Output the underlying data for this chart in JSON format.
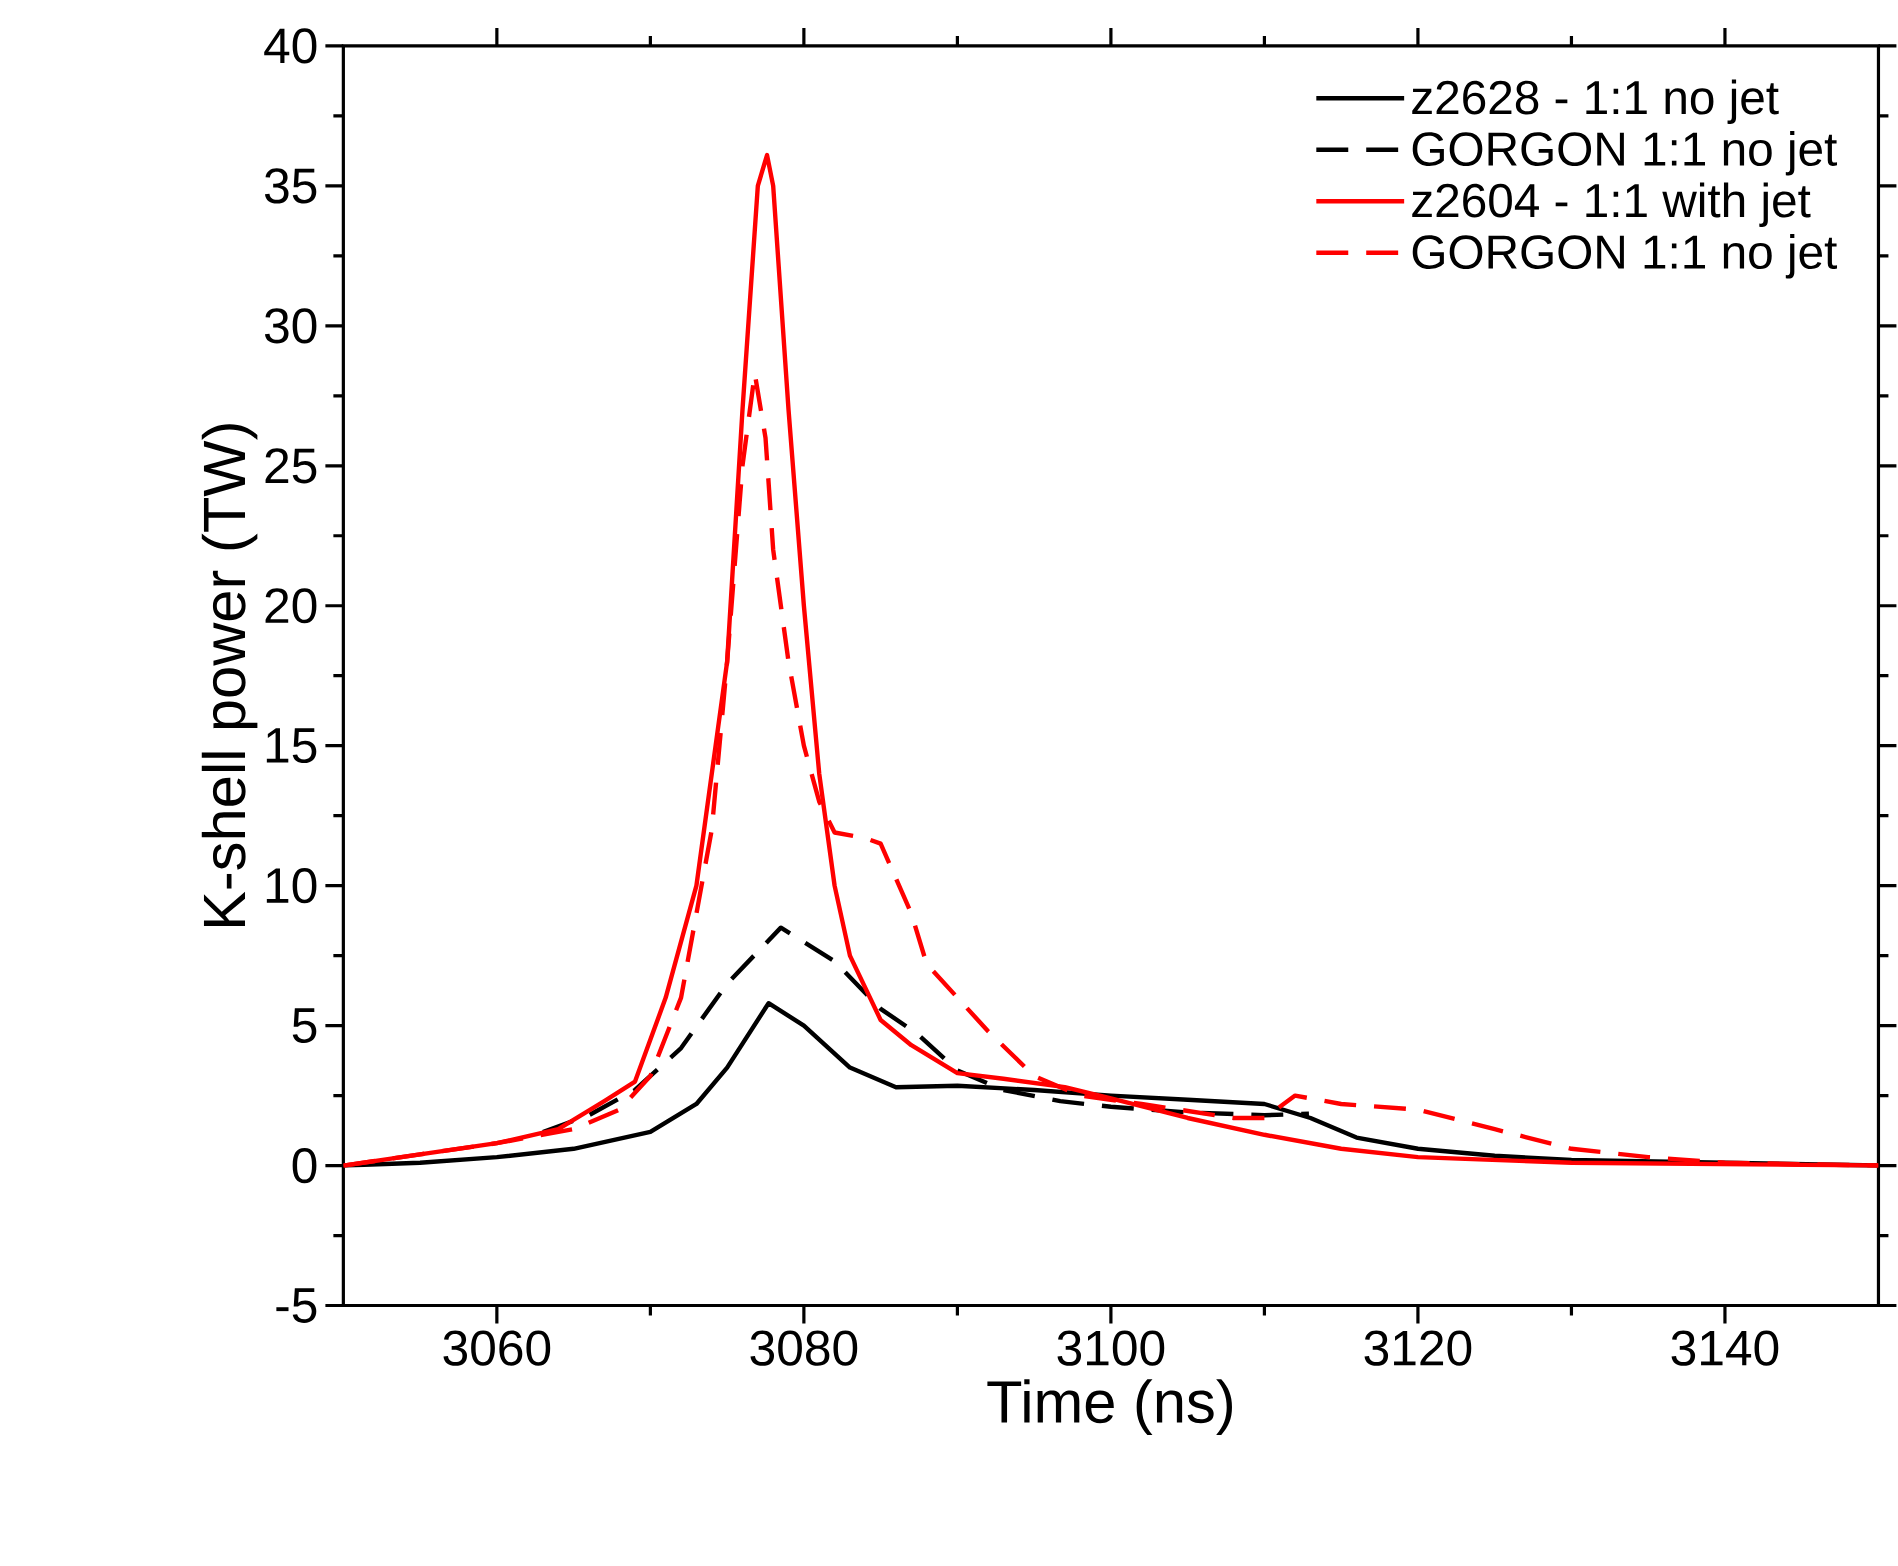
{
  "chart_data": {
    "type": "line",
    "xlabel": "Time (ns)",
    "ylabel": "K-shell power (TW)",
    "xlim": [
      3050,
      3150
    ],
    "ylim": [
      -5,
      40
    ],
    "xticks": [
      3060,
      3080,
      3100,
      3120,
      3140
    ],
    "yticks": [
      -5,
      0,
      5,
      10,
      15,
      20,
      25,
      30,
      35,
      40
    ],
    "legend": "top right",
    "grid": false,
    "series": [
      {
        "name": "z2628 - 1:1 no jet",
        "color": "#000000",
        "line_style": "solid",
        "x": [
          3050,
          3055,
          3060,
          3065,
          3070,
          3073,
          3075,
          3077.7,
          3080,
          3083,
          3086,
          3090,
          3095,
          3100,
          3105,
          3110,
          3113,
          3116,
          3120,
          3125,
          3130,
          3140,
          3150
        ],
        "values": [
          0,
          0.1,
          0.3,
          0.6,
          1.2,
          2.2,
          3.5,
          5.8,
          5,
          3.5,
          2.8,
          2.85,
          2.7,
          2.5,
          2.35,
          2.2,
          1.7,
          1.0,
          0.6,
          0.35,
          0.2,
          0.1,
          0
        ]
      },
      {
        "name": "GORGON 1:1 no jet",
        "color": "#000000",
        "line_style": "dashed",
        "x": [
          3063,
          3066,
          3069,
          3072,
          3075,
          3078.5,
          3082,
          3085,
          3087.4,
          3090,
          3093,
          3096.7,
          3100,
          3105,
          3110,
          3112.9
        ],
        "values": [
          1.2,
          1.8,
          2.7,
          4.2,
          6.5,
          8.5,
          7.3,
          5.6,
          4.7,
          3.4,
          2.7,
          2.3,
          2.1,
          1.9,
          1.8,
          1.85
        ]
      },
      {
        "name": "z2604 - 1:1 with jet",
        "color": "#ff0000",
        "line_style": "solid",
        "x": [
          3050,
          3055,
          3060,
          3064,
          3067,
          3069,
          3071,
          3073,
          3075,
          3076,
          3077,
          3077.6,
          3078,
          3079,
          3080,
          3081,
          3082,
          3083,
          3085,
          3087,
          3090,
          3093,
          3097,
          3100,
          3105,
          3110,
          3115,
          3120,
          3130,
          3150
        ],
        "values": [
          0,
          0.4,
          0.8,
          1.3,
          2.3,
          3.0,
          6,
          10,
          18,
          27,
          35,
          36.1,
          35,
          27,
          20,
          14,
          10,
          7.5,
          5.2,
          4.3,
          3.3,
          3.1,
          2.8,
          2.4,
          1.7,
          1.1,
          0.6,
          0.3,
          0.1,
          0
        ]
      },
      {
        "name": "GORGON 1:1 no jet",
        "color": "#ff0000",
        "line_style": "dashed",
        "x": [
          3050,
          3055,
          3060,
          3065,
          3068,
          3070,
          3072,
          3074,
          3075,
          3076,
          3076.8,
          3077.5,
          3078,
          3079,
          3080,
          3081,
          3082,
          3084,
          3085,
          3087,
          3088,
          3090,
          3092,
          3095,
          3098,
          3102,
          3108,
          3110,
          3112,
          3115,
          3120,
          3125,
          3130,
          3135,
          3140,
          3150
        ],
        "values": [
          0,
          0.4,
          0.8,
          1.3,
          2.0,
          3.2,
          6,
          12,
          18,
          25,
          28.3,
          26,
          22,
          18,
          15,
          13,
          11.9,
          11.7,
          11.5,
          9,
          7.2,
          6,
          4.8,
          3.2,
          2.5,
          2.2,
          1.7,
          1.7,
          2.5,
          2.2,
          2.0,
          1.3,
          0.6,
          0.3,
          0.1,
          0
        ]
      }
    ]
  }
}
